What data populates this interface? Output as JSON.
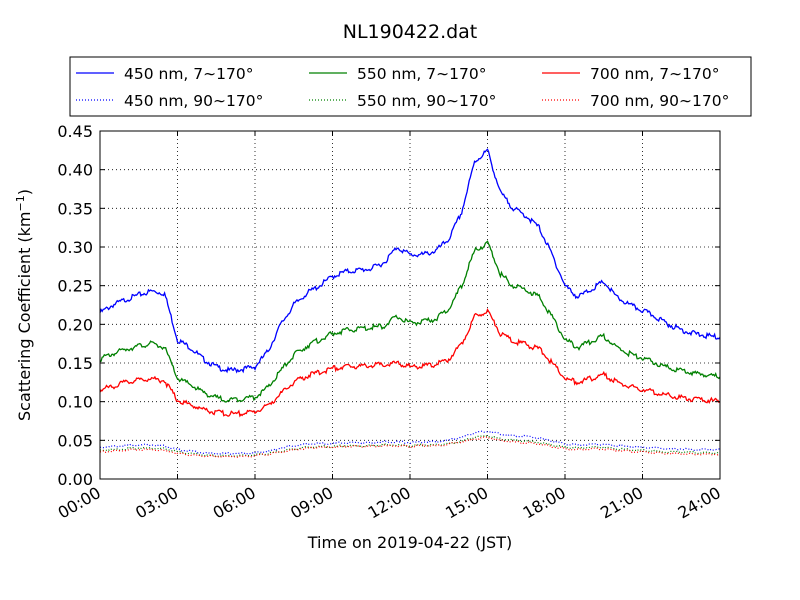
{
  "chart_data": {
    "type": "line",
    "title": "NL190422.dat",
    "xlabel": "Time on 2019-04-22 (JST)",
    "ylabel": "Scattering Coefficient (km",
    "ylabel_sup": "−1",
    "ylabel_close": ")",
    "xlim": [
      "00:00",
      "24:00"
    ],
    "ylim": [
      0.0,
      0.45
    ],
    "grid": true,
    "legend_position": "top",
    "x_ticks": [
      "00:00",
      "03:00",
      "06:00",
      "09:00",
      "12:00",
      "15:00",
      "18:00",
      "21:00",
      "24:00"
    ],
    "y_ticks": [
      "0.00",
      "0.05",
      "0.10",
      "0.15",
      "0.20",
      "0.25",
      "0.30",
      "0.35",
      "0.40",
      "0.45"
    ],
    "x": [
      "00:00",
      "00:30",
      "01:00",
      "01:30",
      "02:00",
      "02:30",
      "03:00",
      "03:30",
      "04:00",
      "04:30",
      "05:00",
      "05:30",
      "06:00",
      "06:30",
      "07:00",
      "07:30",
      "08:00",
      "08:30",
      "09:00",
      "09:30",
      "10:00",
      "10:30",
      "11:00",
      "11:30",
      "12:00",
      "12:30",
      "13:00",
      "13:30",
      "14:00",
      "14:30",
      "15:00",
      "15:30",
      "16:00",
      "16:30",
      "17:00",
      "17:30",
      "18:00",
      "18:30",
      "19:00",
      "19:30",
      "20:00",
      "20:30",
      "21:00",
      "21:30",
      "22:00",
      "22:30",
      "23:00",
      "23:30",
      "24:00"
    ],
    "series": [
      {
        "name": "450 nm, 7∼170°",
        "color": "#0000ff",
        "style": "solid",
        "values": [
          0.215,
          0.225,
          0.232,
          0.238,
          0.243,
          0.24,
          0.18,
          0.17,
          0.155,
          0.145,
          0.14,
          0.142,
          0.145,
          0.165,
          0.2,
          0.225,
          0.24,
          0.25,
          0.262,
          0.268,
          0.27,
          0.272,
          0.28,
          0.3,
          0.29,
          0.29,
          0.295,
          0.31,
          0.345,
          0.41,
          0.425,
          0.37,
          0.35,
          0.34,
          0.325,
          0.29,
          0.25,
          0.235,
          0.245,
          0.255,
          0.235,
          0.225,
          0.218,
          0.21,
          0.2,
          0.193,
          0.188,
          0.185,
          0.183
        ]
      },
      {
        "name": "450 nm, 90∼170°",
        "color": "#0000ff",
        "style": "dotted",
        "values": [
          0.041,
          0.042,
          0.043,
          0.044,
          0.044,
          0.043,
          0.038,
          0.036,
          0.034,
          0.033,
          0.033,
          0.033,
          0.034,
          0.036,
          0.04,
          0.043,
          0.045,
          0.046,
          0.046,
          0.047,
          0.047,
          0.047,
          0.048,
          0.048,
          0.047,
          0.048,
          0.048,
          0.05,
          0.054,
          0.06,
          0.062,
          0.058,
          0.056,
          0.055,
          0.053,
          0.049,
          0.045,
          0.044,
          0.045,
          0.045,
          0.043,
          0.042,
          0.041,
          0.04,
          0.039,
          0.039,
          0.038,
          0.038,
          0.038
        ]
      },
      {
        "name": "550 nm, 7∼170°",
        "color": "#008000",
        "style": "solid",
        "values": [
          0.155,
          0.162,
          0.168,
          0.172,
          0.175,
          0.17,
          0.13,
          0.122,
          0.112,
          0.105,
          0.102,
          0.104,
          0.106,
          0.118,
          0.14,
          0.16,
          0.172,
          0.18,
          0.188,
          0.192,
          0.194,
          0.196,
          0.198,
          0.21,
          0.202,
          0.203,
          0.207,
          0.22,
          0.25,
          0.295,
          0.305,
          0.265,
          0.25,
          0.245,
          0.235,
          0.21,
          0.18,
          0.17,
          0.178,
          0.185,
          0.17,
          0.162,
          0.156,
          0.15,
          0.144,
          0.14,
          0.137,
          0.135,
          0.132
        ]
      },
      {
        "name": "550 nm, 90∼170°",
        "color": "#008000",
        "style": "dotted",
        "values": [
          0.037,
          0.038,
          0.039,
          0.04,
          0.04,
          0.039,
          0.035,
          0.033,
          0.031,
          0.03,
          0.03,
          0.03,
          0.031,
          0.033,
          0.036,
          0.039,
          0.041,
          0.042,
          0.042,
          0.043,
          0.043,
          0.043,
          0.044,
          0.044,
          0.043,
          0.044,
          0.044,
          0.046,
          0.049,
          0.054,
          0.056,
          0.052,
          0.05,
          0.049,
          0.047,
          0.044,
          0.041,
          0.04,
          0.041,
          0.041,
          0.039,
          0.038,
          0.037,
          0.036,
          0.035,
          0.035,
          0.034,
          0.034,
          0.034
        ]
      },
      {
        "name": "700 nm, 7∼170°",
        "color": "#ff0000",
        "style": "solid",
        "values": [
          0.115,
          0.12,
          0.125,
          0.128,
          0.13,
          0.127,
          0.102,
          0.096,
          0.09,
          0.086,
          0.084,
          0.085,
          0.087,
          0.095,
          0.11,
          0.125,
          0.133,
          0.138,
          0.143,
          0.145,
          0.146,
          0.147,
          0.148,
          0.15,
          0.145,
          0.146,
          0.148,
          0.155,
          0.175,
          0.21,
          0.218,
          0.188,
          0.178,
          0.174,
          0.168,
          0.15,
          0.13,
          0.125,
          0.13,
          0.135,
          0.125,
          0.12,
          0.116,
          0.112,
          0.108,
          0.105,
          0.103,
          0.102,
          0.1
        ]
      },
      {
        "name": "700 nm, 90∼170°",
        "color": "#ff0000",
        "style": "dotted",
        "values": [
          0.035,
          0.036,
          0.037,
          0.038,
          0.038,
          0.037,
          0.033,
          0.031,
          0.03,
          0.029,
          0.029,
          0.029,
          0.03,
          0.032,
          0.035,
          0.038,
          0.04,
          0.041,
          0.041,
          0.042,
          0.042,
          0.042,
          0.043,
          0.043,
          0.042,
          0.043,
          0.043,
          0.045,
          0.048,
          0.052,
          0.054,
          0.05,
          0.048,
          0.047,
          0.045,
          0.042,
          0.039,
          0.038,
          0.039,
          0.039,
          0.037,
          0.036,
          0.035,
          0.034,
          0.033,
          0.033,
          0.032,
          0.032,
          0.032
        ]
      }
    ]
  }
}
